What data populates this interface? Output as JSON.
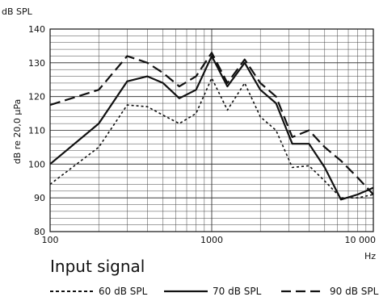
{
  "chart_data": {
    "type": "line",
    "ylabel_top": "dB SPL",
    "ylabel": "dB re 20,0 µPa",
    "xlabel": "Hz",
    "xscale": "log",
    "xlim": [
      100,
      10000
    ],
    "ylim": [
      80,
      140
    ],
    "xticks": [
      {
        "value": 100,
        "label": "100"
      },
      {
        "value": 1000,
        "label": "1000"
      },
      {
        "value": 10000,
        "label": "10 000"
      }
    ],
    "yticks": [
      80,
      90,
      100,
      110,
      120,
      130,
      140
    ],
    "grid": true,
    "legend_title": "Input signal",
    "series": [
      {
        "name": "60 dB SPL",
        "style": "dotted",
        "points": [
          [
            100,
            94
          ],
          [
            200,
            105
          ],
          [
            300,
            117.5
          ],
          [
            400,
            117
          ],
          [
            500,
            114.5
          ],
          [
            630,
            112
          ],
          [
            800,
            115
          ],
          [
            1000,
            125.5
          ],
          [
            1250,
            116
          ],
          [
            1600,
            124
          ],
          [
            2000,
            114
          ],
          [
            2500,
            110
          ],
          [
            3150,
            99
          ],
          [
            4000,
            99.5
          ],
          [
            5000,
            95
          ],
          [
            6300,
            90
          ],
          [
            8000,
            90
          ],
          [
            10000,
            91
          ]
        ]
      },
      {
        "name": "70 dB SPL",
        "style": "solid",
        "points": [
          [
            100,
            100
          ],
          [
            200,
            112
          ],
          [
            300,
            124.5
          ],
          [
            400,
            126
          ],
          [
            500,
            124
          ],
          [
            630,
            119.5
          ],
          [
            800,
            122
          ],
          [
            1000,
            132
          ],
          [
            1250,
            123
          ],
          [
            1600,
            130
          ],
          [
            2000,
            122
          ],
          [
            2500,
            118
          ],
          [
            3150,
            106
          ],
          [
            4000,
            106
          ],
          [
            5000,
            99
          ],
          [
            6300,
            89.5
          ],
          [
            8000,
            91
          ],
          [
            10000,
            93
          ]
        ]
      },
      {
        "name": "90 dB SPL",
        "style": "dashed",
        "points": [
          [
            100,
            117.5
          ],
          [
            200,
            122
          ],
          [
            300,
            132
          ],
          [
            400,
            130
          ],
          [
            500,
            127
          ],
          [
            630,
            123
          ],
          [
            800,
            126
          ],
          [
            1000,
            133
          ],
          [
            1250,
            124
          ],
          [
            1600,
            131
          ],
          [
            2000,
            124
          ],
          [
            2500,
            120
          ],
          [
            3150,
            108
          ],
          [
            4000,
            110
          ],
          [
            5000,
            105
          ],
          [
            6300,
            101
          ],
          [
            8000,
            96
          ],
          [
            10000,
            91
          ]
        ]
      }
    ]
  }
}
